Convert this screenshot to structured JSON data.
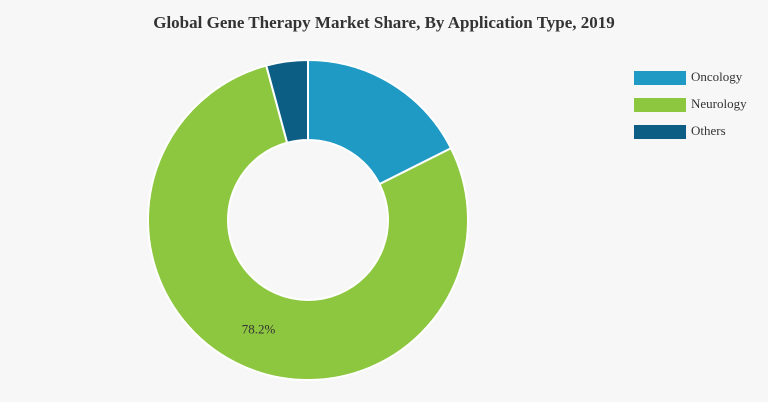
{
  "chart_data": {
    "type": "donut",
    "title": "Global Gene Therapy Market Share, By Application Type, 2019",
    "categories": [
      "Oncology",
      "Neurology",
      "Others"
    ],
    "values": [
      17.6,
      78.2,
      4.2
    ],
    "value_labels": [
      null,
      "78.2%",
      null
    ],
    "colors": [
      "#1f9ac4",
      "#8dc63f",
      "#0d5e85"
    ],
    "legend": "top-right"
  }
}
